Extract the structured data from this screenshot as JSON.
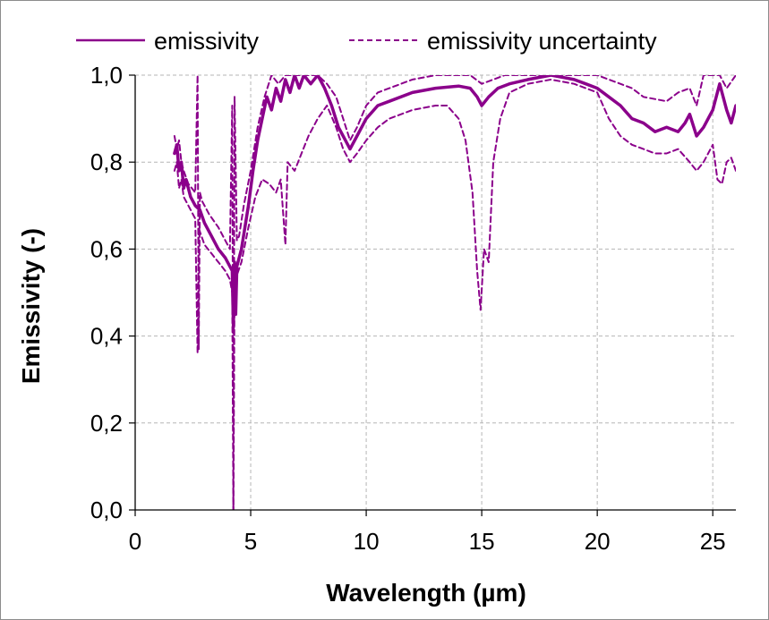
{
  "chart_data": {
    "type": "line",
    "xlabel": "Wavelength (µm)",
    "ylabel": "Emissivity (-)",
    "xlim": [
      0,
      26
    ],
    "ylim": [
      0,
      1.0
    ],
    "x_ticks": [
      "0",
      "5",
      "10",
      "15",
      "20",
      "25"
    ],
    "y_ticks": [
      "0,0",
      "0,2",
      "0,4",
      "0,6",
      "0,8",
      "1,0"
    ],
    "grid": true,
    "legend": "top",
    "color": "#8b008b",
    "series": [
      {
        "name": "emissivity",
        "style": "solid",
        "x": [
          1.7,
          1.8,
          1.9,
          2.0,
          2.1,
          2.2,
          2.4,
          2.6,
          2.8,
          3.0,
          3.3,
          3.6,
          3.9,
          4.1,
          4.2,
          4.25,
          4.3,
          4.35,
          4.4,
          4.6,
          4.9,
          5.1,
          5.3,
          5.5,
          5.7,
          5.9,
          6.1,
          6.3,
          6.5,
          6.7,
          6.9,
          7.1,
          7.3,
          7.6,
          7.9,
          8.2,
          8.5,
          8.8,
          9.1,
          9.3,
          9.6,
          10.0,
          10.5,
          11.0,
          12.0,
          13.0,
          14.0,
          14.5,
          14.8,
          15.0,
          15.3,
          15.7,
          16.2,
          17.0,
          18.0,
          19.0,
          19.5,
          20.0,
          20.5,
          21.0,
          21.5,
          22.0,
          22.5,
          23.0,
          23.5,
          23.8,
          24.0,
          24.3,
          24.6,
          25.0,
          25.3,
          25.6,
          25.8,
          26.0
        ],
        "y": [
          0.82,
          0.84,
          0.78,
          0.8,
          0.74,
          0.76,
          0.72,
          0.7,
          0.69,
          0.66,
          0.63,
          0.6,
          0.58,
          0.56,
          0.55,
          0.42,
          0.57,
          0.45,
          0.56,
          0.6,
          0.7,
          0.78,
          0.85,
          0.9,
          0.95,
          0.92,
          0.97,
          0.94,
          0.99,
          0.96,
          1.0,
          0.97,
          1.0,
          0.98,
          1.0,
          0.97,
          0.93,
          0.88,
          0.85,
          0.83,
          0.86,
          0.9,
          0.93,
          0.94,
          0.96,
          0.97,
          0.975,
          0.97,
          0.95,
          0.93,
          0.95,
          0.97,
          0.98,
          0.99,
          1.0,
          0.99,
          0.98,
          0.97,
          0.95,
          0.93,
          0.9,
          0.89,
          0.87,
          0.88,
          0.87,
          0.89,
          0.91,
          0.86,
          0.88,
          0.92,
          0.98,
          0.92,
          0.89,
          0.93
        ]
      },
      {
        "name": "emissivity uncertainty",
        "style": "dashed",
        "x": [
          1.7,
          1.8,
          1.9,
          2.0,
          2.1,
          2.3,
          2.6,
          2.7,
          2.75,
          2.8,
          2.9,
          3.2,
          3.6,
          3.9,
          4.1,
          4.2,
          4.25,
          4.3,
          4.4,
          4.5,
          4.7,
          5.0,
          5.3,
          5.6,
          5.9,
          6.2,
          6.5,
          6.8,
          7.1,
          7.5,
          7.9,
          8.3,
          8.7,
          9.0,
          9.3,
          9.6,
          10.0,
          10.5,
          11.0,
          12.0,
          13.0,
          14.0,
          14.5,
          15.0,
          15.5,
          16.0,
          17.0,
          18.0,
          19.0,
          20.0,
          20.5,
          21.0,
          21.5,
          22.0,
          23.0,
          23.5,
          24.0,
          24.3,
          24.6,
          25.0,
          25.3,
          25.6,
          26.0
        ],
        "y": [
          0.86,
          0.83,
          0.85,
          0.8,
          0.78,
          0.75,
          0.73,
          1.0,
          0.37,
          0.73,
          0.71,
          0.68,
          0.65,
          0.62,
          0.6,
          0.93,
          0.0,
          0.95,
          0.62,
          0.63,
          0.7,
          0.78,
          0.88,
          0.95,
          1.0,
          0.98,
          1.0,
          1.0,
          1.0,
          1.0,
          1.0,
          0.98,
          0.95,
          0.9,
          0.85,
          0.88,
          0.93,
          0.96,
          0.97,
          0.99,
          1.0,
          1.0,
          1.0,
          0.98,
          0.99,
          1.0,
          1.0,
          1.0,
          1.0,
          1.0,
          0.99,
          0.98,
          0.97,
          0.95,
          0.94,
          0.96,
          0.97,
          0.93,
          1.0,
          1.0,
          1.0,
          0.97,
          1.0
        ]
      },
      {
        "name": "emissivity uncertainty",
        "style": "dashed",
        "x": [
          1.7,
          1.8,
          1.9,
          2.0,
          2.1,
          2.3,
          2.6,
          2.7,
          2.75,
          2.8,
          3.0,
          3.3,
          3.6,
          3.9,
          4.1,
          4.2,
          4.25,
          4.3,
          4.4,
          4.6,
          4.9,
          5.2,
          5.5,
          5.8,
          6.1,
          6.3,
          6.5,
          6.6,
          6.9,
          7.2,
          7.5,
          7.9,
          8.3,
          8.7,
          9.0,
          9.3,
          9.6,
          10.0,
          10.5,
          11.0,
          12.0,
          13.0,
          13.5,
          14.0,
          14.3,
          14.6,
          14.8,
          14.95,
          15.1,
          15.3,
          15.5,
          15.8,
          16.2,
          17.0,
          18.0,
          19.0,
          20.0,
          20.5,
          21.0,
          21.5,
          22.0,
          22.5,
          23.0,
          23.5,
          24.0,
          24.3,
          24.6,
          25.0,
          25.2,
          25.4,
          25.6,
          25.8,
          26.0
        ],
        "y": [
          0.78,
          0.8,
          0.74,
          0.76,
          0.72,
          0.7,
          0.67,
          0.36,
          0.65,
          0.64,
          0.61,
          0.59,
          0.57,
          0.55,
          0.53,
          0.5,
          0.0,
          0.52,
          0.54,
          0.57,
          0.65,
          0.72,
          0.76,
          0.75,
          0.73,
          0.76,
          0.61,
          0.8,
          0.78,
          0.82,
          0.86,
          0.9,
          0.93,
          0.88,
          0.83,
          0.8,
          0.82,
          0.85,
          0.88,
          0.9,
          0.92,
          0.93,
          0.93,
          0.9,
          0.85,
          0.73,
          0.55,
          0.46,
          0.6,
          0.57,
          0.8,
          0.9,
          0.96,
          0.98,
          0.99,
          0.98,
          0.96,
          0.9,
          0.86,
          0.84,
          0.83,
          0.82,
          0.82,
          0.83,
          0.8,
          0.78,
          0.8,
          0.84,
          0.76,
          0.75,
          0.8,
          0.81,
          0.78
        ]
      }
    ]
  }
}
